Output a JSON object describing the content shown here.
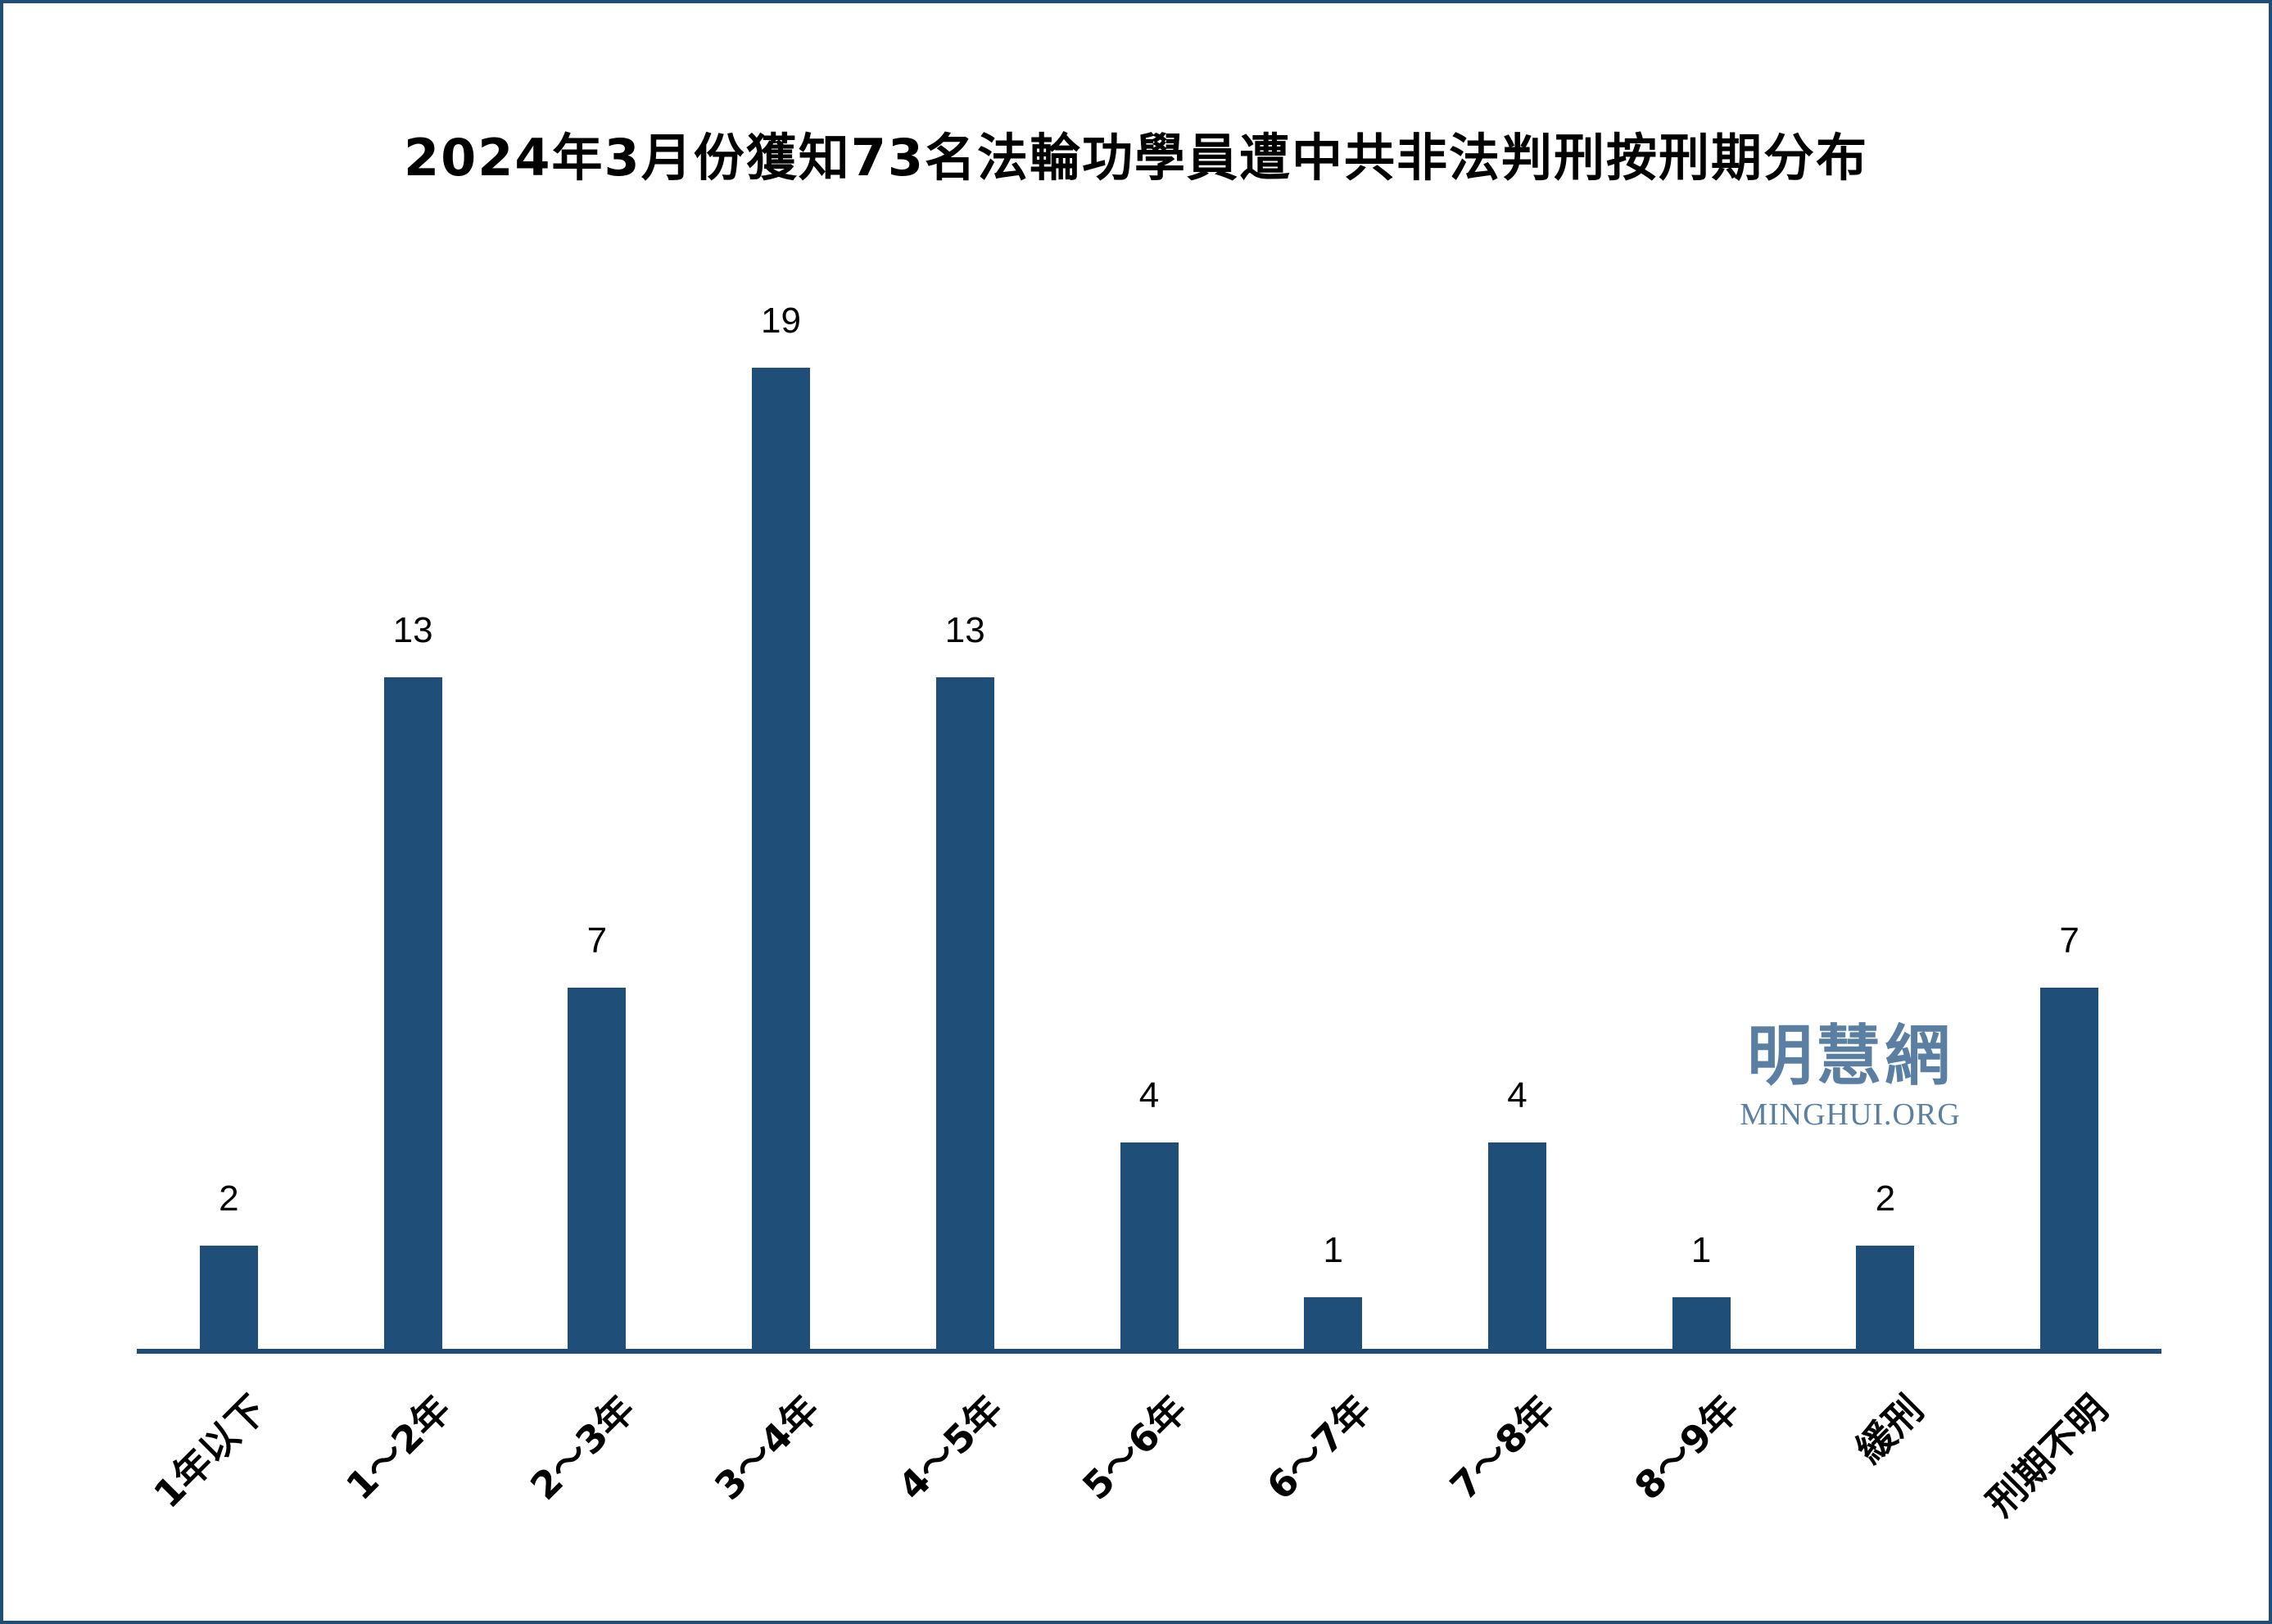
{
  "chart_data": {
    "type": "bar",
    "title": "2024年3月份獲知73名法輪功學員遭中共非法判刑按刑期分布",
    "categories": [
      "1年以下",
      "1～2年",
      "2～3年",
      "3～4年",
      "4～5年",
      "5～6年",
      "6～7年",
      "7～8年",
      "8～9年",
      "緩刑",
      "刑期不明"
    ],
    "values": [
      2,
      13,
      7,
      19,
      13,
      4,
      1,
      4,
      1,
      2,
      7
    ],
    "xlabel": "",
    "ylabel": "",
    "ylim": [
      0,
      19
    ],
    "grid": false,
    "legend": "none",
    "data_labels": true,
    "bar_color": "#1f4e79"
  },
  "watermark": {
    "cn": "明慧網",
    "en": "MINGHUI.ORG",
    "color": "#5a7fa3"
  },
  "frame": {
    "border_color": "#1f4e79"
  }
}
